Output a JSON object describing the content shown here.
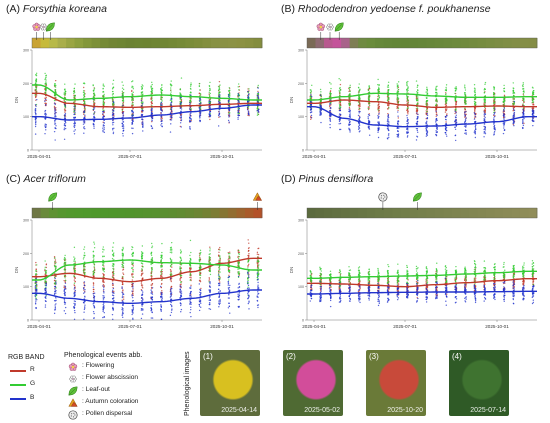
{
  "panels": [
    {
      "id": "A",
      "title_prefix": "(A)",
      "title_species": "Forsythia koreana",
      "ylabel": "DN",
      "ymax_label": "300",
      "ytick_labels": [
        "300",
        "200",
        "100",
        "0"
      ],
      "xtick_labels": [
        "2025-04-01",
        "2025-07-01",
        "2025-10-01"
      ],
      "strip_colors": [
        "#c9a334",
        "#c6ba3a",
        "#b7b948",
        "#a9ae4a",
        "#9aa543",
        "#8d9f3e",
        "#83973a",
        "#7c9038",
        "#758a36",
        "#718535",
        "#6e8534",
        "#6b8233",
        "#6c8433",
        "#6c8332",
        "#6e8533",
        "#708634",
        "#738835",
        "#768a37",
        "#7a8c39",
        "#7e8d3b",
        "#838f3f",
        "#879144",
        "#8a9145",
        "#8c9245",
        "#8c9142",
        "#899040",
        "#848d3e"
      ],
      "events": [
        {
          "icon": "flowering",
          "label": "flowering-marker"
        },
        {
          "icon": "flower-abscission",
          "label": "abscission-marker"
        },
        {
          "icon": "leaf-out",
          "label": "leafout-marker"
        }
      ]
    },
    {
      "id": "B",
      "title_prefix": "(B)",
      "title_species": "Rhododendron yedoense f. poukhanense",
      "ylabel": "DN",
      "ymax_label": "300",
      "ytick_labels": [
        "300",
        "200",
        "100",
        "0"
      ],
      "xtick_labels": [
        "2025-04-01",
        "2025-07-01",
        "2025-10-01"
      ],
      "strip_colors": [
        "#7a6a56",
        "#8e6a72",
        "#b8588f",
        "#c4539a",
        "#a8628a",
        "#7e7e55",
        "#6f8a42",
        "#6a8c3c",
        "#66893a",
        "#648739",
        "#638638",
        "#638537",
        "#648538",
        "#658639",
        "#67873a",
        "#69883b",
        "#6b893c",
        "#6d8a3d",
        "#708a3e",
        "#738b3f",
        "#768c40",
        "#798d42",
        "#7c8d44",
        "#7f8e45",
        "#828e46",
        "#848e46",
        "#848d45"
      ],
      "events": [
        {
          "icon": "flowering",
          "label": "flowering-marker"
        },
        {
          "icon": "flower-abscission",
          "label": "abscission-marker"
        },
        {
          "icon": "leaf-out",
          "label": "leafout-marker"
        }
      ]
    },
    {
      "id": "C",
      "title_prefix": "(C)",
      "title_species": "Acer triflorum",
      "ylabel": "DN",
      "ymax_label": "300",
      "ytick_labels": [
        "300",
        "200",
        "100",
        "0"
      ],
      "xtick_labels": [
        "2025-04-01",
        "2025-07-01",
        "2025-10-01"
      ],
      "strip_colors": [
        "#6f7745",
        "#6a8a3c",
        "#5f9233",
        "#56962f",
        "#52982d",
        "#50992c",
        "#4f992c",
        "#4e982b",
        "#4e972b",
        "#4f962b",
        "#50952c",
        "#51942c",
        "#53932d",
        "#55922e",
        "#57912f",
        "#5a8f30",
        "#5d8d31",
        "#618b32",
        "#668833",
        "#6c8534",
        "#738134",
        "#7c7c34",
        "#867533",
        "#926d31",
        "#9e642e",
        "#a95b2b",
        "#b3522a"
      ],
      "events": [
        {
          "icon": "leaf-out",
          "label": "leafout-marker"
        },
        {
          "icon": "autumn-coloration",
          "label": "autumn-marker"
        }
      ]
    },
    {
      "id": "D",
      "title_prefix": "(D)",
      "title_species": "Pinus densiflora",
      "ylabel": "DN",
      "ymax_label": "300",
      "ytick_labels": [
        "300",
        "200",
        "100",
        "0"
      ],
      "xtick_labels": [
        "2025-04-01",
        "2025-07-01",
        "2025-10-01"
      ],
      "strip_colors": [
        "#5b6a3e",
        "#5e6c3f",
        "#606e40",
        "#627042",
        "#647243",
        "#667444",
        "#687645",
        "#6a7846",
        "#6c7a47",
        "#6e7b48",
        "#707d49",
        "#727e4a",
        "#747f4b",
        "#76804c",
        "#78814d",
        "#7a824e",
        "#7c834f",
        "#7e8450",
        "#808551",
        "#828652",
        "#848753",
        "#868854",
        "#888955",
        "#8a8a56",
        "#8c8b57",
        "#8e8c58",
        "#908d59"
      ],
      "events": [
        {
          "icon": "pollen-dispersal",
          "label": "pollen-marker"
        },
        {
          "icon": "leaf-out",
          "label": "leafout-marker"
        }
      ]
    }
  ],
  "legend": {
    "rgb_title": "RGB BAND",
    "bands": [
      {
        "name": "R",
        "color": "#c0392b"
      },
      {
        "name": "G",
        "color": "#33cc33"
      },
      {
        "name": "B",
        "color": "#2233cc"
      }
    ],
    "events_title": "Phenological events abb.",
    "events": [
      {
        "icon": "flowering",
        "text": ": Flowering"
      },
      {
        "icon": "flower-abscission",
        "text": ": Flower abscission"
      },
      {
        "icon": "leaf-out",
        "text": ": Leaf-out"
      },
      {
        "icon": "autumn-coloration",
        "text": ": Autumn coloration"
      },
      {
        "icon": "pollen-dispersal",
        "text": ": Pollen dispersal"
      }
    ]
  },
  "photos": {
    "label": "Phenological images",
    "items": [
      {
        "num": "(1)",
        "date": "2025-04-14",
        "colors": [
          "#5e6c3c",
          "#d8c020",
          "#8a8a6a"
        ]
      },
      {
        "num": "(2)",
        "date": "2025-05-02",
        "colors": [
          "#4f6a33",
          "#d24d9a",
          "#b7a486"
        ]
      },
      {
        "num": "(3)",
        "date": "2025-10-20",
        "colors": [
          "#6a7a38",
          "#c84a3a",
          "#b59a74"
        ]
      },
      {
        "num": "(4)",
        "date": "2025-07-14",
        "colors": [
          "#2f5a26",
          "#3f7330",
          "#4c8238"
        ]
      }
    ]
  },
  "chart_data": [
    {
      "panel": "A",
      "type": "scatter",
      "title": "(A) Forsythia koreana",
      "xlabel": "",
      "ylabel": "DN",
      "x": [
        "2025-04-01",
        "2025-05-01",
        "2025-06-01",
        "2025-07-01",
        "2025-08-01",
        "2025-09-01",
        "2025-10-01",
        "2025-11-01"
      ],
      "xlim": [
        "2025-03-25",
        "2025-11-10"
      ],
      "ylim": [
        0,
        300
      ],
      "series": [
        {
          "name": "R",
          "color": "#c0392b",
          "values": [
            170,
            140,
            130,
            128,
            130,
            133,
            137,
            140
          ]
        },
        {
          "name": "G",
          "color": "#33cc33",
          "values": [
            195,
            150,
            155,
            160,
            165,
            160,
            155,
            150
          ]
        },
        {
          "name": "B",
          "color": "#2233cc",
          "values": [
            100,
            90,
            92,
            96,
            105,
            115,
            125,
            135
          ]
        }
      ],
      "spread": 70
    },
    {
      "panel": "B",
      "type": "scatter",
      "title": "(B) Rhododendron yedoense f. poukhanense",
      "xlabel": "",
      "ylabel": "DN",
      "x": [
        "2025-04-01",
        "2025-05-01",
        "2025-06-01",
        "2025-07-01",
        "2025-08-01",
        "2025-09-01",
        "2025-10-01",
        "2025-11-01"
      ],
      "xlim": [
        "2025-03-25",
        "2025-11-10"
      ],
      "ylim": [
        0,
        300
      ],
      "series": [
        {
          "name": "R",
          "color": "#c0392b",
          "values": [
            140,
            150,
            145,
            135,
            128,
            130,
            132,
            130
          ]
        },
        {
          "name": "G",
          "color": "#33cc33",
          "values": [
            150,
            160,
            170,
            168,
            162,
            158,
            158,
            160
          ]
        },
        {
          "name": "B",
          "color": "#2233cc",
          "values": [
            130,
            95,
            75,
            70,
            72,
            78,
            85,
            100
          ]
        }
      ],
      "spread": 60
    },
    {
      "panel": "C",
      "type": "scatter",
      "title": "(C) Acer triflorum",
      "xlabel": "",
      "ylabel": "DN",
      "x": [
        "2025-04-01",
        "2025-05-01",
        "2025-06-01",
        "2025-07-01",
        "2025-08-01",
        "2025-09-01",
        "2025-10-01",
        "2025-11-01"
      ],
      "xlim": [
        "2025-03-25",
        "2025-11-10"
      ],
      "ylim": [
        0,
        300
      ],
      "series": [
        {
          "name": "R",
          "color": "#c0392b",
          "values": [
            130,
            140,
            125,
            115,
            125,
            145,
            170,
            185
          ]
        },
        {
          "name": "G",
          "color": "#33cc33",
          "values": [
            120,
            165,
            175,
            180,
            172,
            170,
            165,
            150
          ]
        },
        {
          "name": "B",
          "color": "#2233cc",
          "values": [
            80,
            65,
            55,
            50,
            55,
            65,
            80,
            90
          ]
        }
      ],
      "spread": 80
    },
    {
      "panel": "D",
      "type": "scatter",
      "title": "(D) Pinus densiflora",
      "xlabel": "",
      "ylabel": "DN",
      "x": [
        "2025-04-01",
        "2025-05-01",
        "2025-06-01",
        "2025-07-01",
        "2025-08-01",
        "2025-09-01",
        "2025-10-01",
        "2025-11-01"
      ],
      "xlim": [
        "2025-03-25",
        "2025-11-10"
      ],
      "ylim": [
        0,
        300
      ],
      "series": [
        {
          "name": "R",
          "color": "#c0392b",
          "values": [
            110,
            108,
            104,
            100,
            106,
            112,
            118,
            124
          ]
        },
        {
          "name": "G",
          "color": "#33cc33",
          "values": [
            125,
            128,
            130,
            132,
            134,
            138,
            142,
            146
          ]
        },
        {
          "name": "B",
          "color": "#2233cc",
          "values": [
            78,
            80,
            82,
            83,
            84,
            84,
            85,
            86
          ]
        }
      ],
      "spread": 45
    }
  ]
}
